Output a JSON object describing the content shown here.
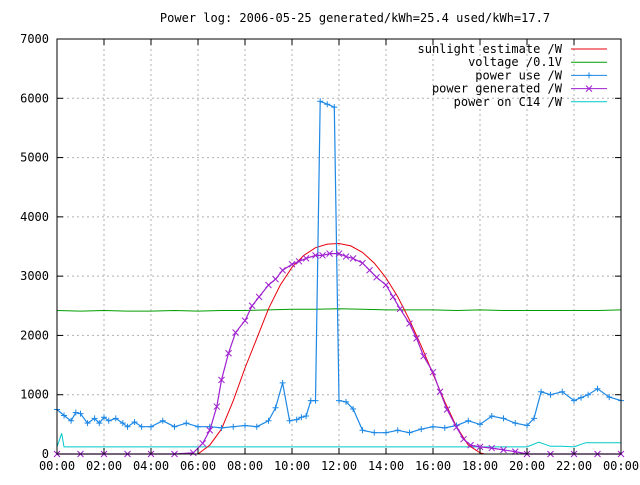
{
  "chart_data": {
    "type": "line",
    "title": "Power log: 2006-05-25 generated/kWh=25.4 used/kWh=17.7",
    "xlabel": "",
    "ylabel": "",
    "x_unit": "hours of day",
    "xlim": [
      0,
      24
    ],
    "ylim": [
      0,
      7000
    ],
    "grid": true,
    "legend_position": "top-right",
    "x_tick_labels": [
      "00:00",
      "02:00",
      "04:00",
      "06:00",
      "08:00",
      "10:00",
      "12:00",
      "14:00",
      "16:00",
      "18:00",
      "20:00",
      "22:00",
      "00:00"
    ],
    "x_tick_values": [
      0,
      2,
      4,
      6,
      8,
      10,
      12,
      14,
      16,
      18,
      20,
      22,
      24
    ],
    "y_tick_labels": [
      "0",
      "1000",
      "2000",
      "3000",
      "4000",
      "5000",
      "6000",
      "7000"
    ],
    "y_tick_values": [
      0,
      1000,
      2000,
      3000,
      4000,
      5000,
      6000,
      7000
    ],
    "series": [
      {
        "name": "sunlight estimate /W",
        "color": "#e8000b",
        "marker": "none",
        "x": [
          6.0,
          6.5,
          7.0,
          7.5,
          8.0,
          8.5,
          9.0,
          9.5,
          10.0,
          10.5,
          11.0,
          11.5,
          12.0,
          12.5,
          13.0,
          13.5,
          14.0,
          14.5,
          15.0,
          15.5,
          16.0,
          16.5,
          17.0,
          17.5,
          18.0,
          18.2
        ],
        "y": [
          0,
          150,
          420,
          900,
          1450,
          1950,
          2450,
          2850,
          3150,
          3350,
          3480,
          3540,
          3550,
          3510,
          3400,
          3220,
          2970,
          2650,
          2260,
          1820,
          1350,
          880,
          460,
          150,
          20,
          0
        ]
      },
      {
        "name": "voltage /0.1V",
        "color": "#009e00",
        "marker": "none",
        "x": [
          0,
          1,
          2,
          3,
          4,
          5,
          6,
          7,
          8,
          9,
          10,
          11,
          12,
          13,
          14,
          15,
          16,
          17,
          18,
          19,
          20,
          21,
          22,
          23,
          24
        ],
        "y": [
          2420,
          2410,
          2420,
          2410,
          2410,
          2420,
          2410,
          2420,
          2420,
          2430,
          2440,
          2440,
          2450,
          2440,
          2430,
          2430,
          2430,
          2420,
          2430,
          2420,
          2420,
          2420,
          2420,
          2420,
          2430
        ]
      },
      {
        "name": "power use /W",
        "color": "#1e88e5",
        "marker": "plus",
        "x": [
          0,
          0.3,
          0.6,
          0.8,
          1.0,
          1.3,
          1.6,
          1.8,
          2.0,
          2.2,
          2.5,
          2.8,
          3.0,
          3.3,
          3.6,
          4.0,
          4.5,
          5.0,
          5.5,
          6.0,
          6.5,
          7.0,
          7.5,
          8.0,
          8.5,
          9.0,
          9.3,
          9.6,
          9.9,
          10.2,
          10.4,
          10.6,
          10.8,
          11.0,
          11.2,
          11.5,
          11.8,
          12.0,
          12.3,
          12.6,
          13.0,
          13.5,
          14.0,
          14.5,
          15.0,
          15.5,
          16.0,
          16.5,
          17.0,
          17.5,
          18.0,
          18.5,
          19.0,
          19.5,
          20.0,
          20.3,
          20.6,
          21.0,
          21.5,
          22.0,
          22.3,
          22.6,
          23.0,
          23.5,
          24.0
        ],
        "y": [
          750,
          650,
          560,
          700,
          680,
          520,
          600,
          520,
          620,
          560,
          600,
          520,
          460,
          540,
          460,
          460,
          560,
          460,
          520,
          460,
          460,
          440,
          460,
          480,
          460,
          560,
          780,
          1200,
          560,
          580,
          620,
          640,
          900,
          900,
          5950,
          5900,
          5850,
          900,
          880,
          760,
          400,
          360,
          360,
          400,
          360,
          420,
          460,
          440,
          480,
          560,
          500,
          640,
          600,
          520,
          480,
          600,
          1050,
          1000,
          1050,
          900,
          950,
          1000,
          1100,
          960,
          900
        ]
      },
      {
        "name": "power generated /W",
        "color": "#a020d0",
        "marker": "cross",
        "x": [
          0,
          1,
          2,
          3,
          4,
          5,
          5.8,
          6.2,
          6.5,
          6.8,
          7.0,
          7.3,
          7.6,
          8.0,
          8.3,
          8.6,
          9.0,
          9.3,
          9.6,
          10.0,
          10.3,
          10.6,
          11.0,
          11.3,
          11.6,
          12.0,
          12.3,
          12.6,
          13.0,
          13.3,
          13.6,
          14.0,
          14.3,
          14.6,
          15.0,
          15.3,
          15.6,
          16.0,
          16.3,
          16.6,
          17.0,
          17.3,
          17.6,
          18.0,
          18.5,
          19.0,
          19.5,
          20.0,
          21.0,
          22.0,
          23.0,
          24.0
        ],
        "y": [
          0,
          0,
          0,
          0,
          0,
          0,
          20,
          180,
          400,
          800,
          1250,
          1700,
          2050,
          2250,
          2500,
          2650,
          2850,
          2950,
          3100,
          3200,
          3250,
          3300,
          3350,
          3350,
          3380,
          3380,
          3330,
          3300,
          3220,
          3100,
          2980,
          2850,
          2650,
          2450,
          2200,
          1950,
          1650,
          1380,
          1050,
          750,
          450,
          250,
          150,
          120,
          100,
          70,
          40,
          0,
          0,
          0,
          0,
          0
        ]
      },
      {
        "name": "power on C14 /W",
        "color": "#00c8c8",
        "marker": "none",
        "x": [
          0,
          0.2,
          0.3,
          0.5,
          1,
          2,
          3,
          4,
          5,
          6,
          7,
          8,
          9,
          10,
          11,
          12,
          13,
          14,
          15,
          16,
          17,
          18,
          19,
          20,
          20.5,
          21,
          21.5,
          22,
          22.5,
          23,
          24
        ],
        "y": [
          120,
          350,
          120,
          120,
          120,
          120,
          120,
          120,
          120,
          120,
          120,
          120,
          120,
          120,
          120,
          120,
          120,
          120,
          120,
          120,
          120,
          120,
          120,
          120,
          200,
          130,
          130,
          120,
          190,
          190,
          190
        ]
      }
    ]
  }
}
